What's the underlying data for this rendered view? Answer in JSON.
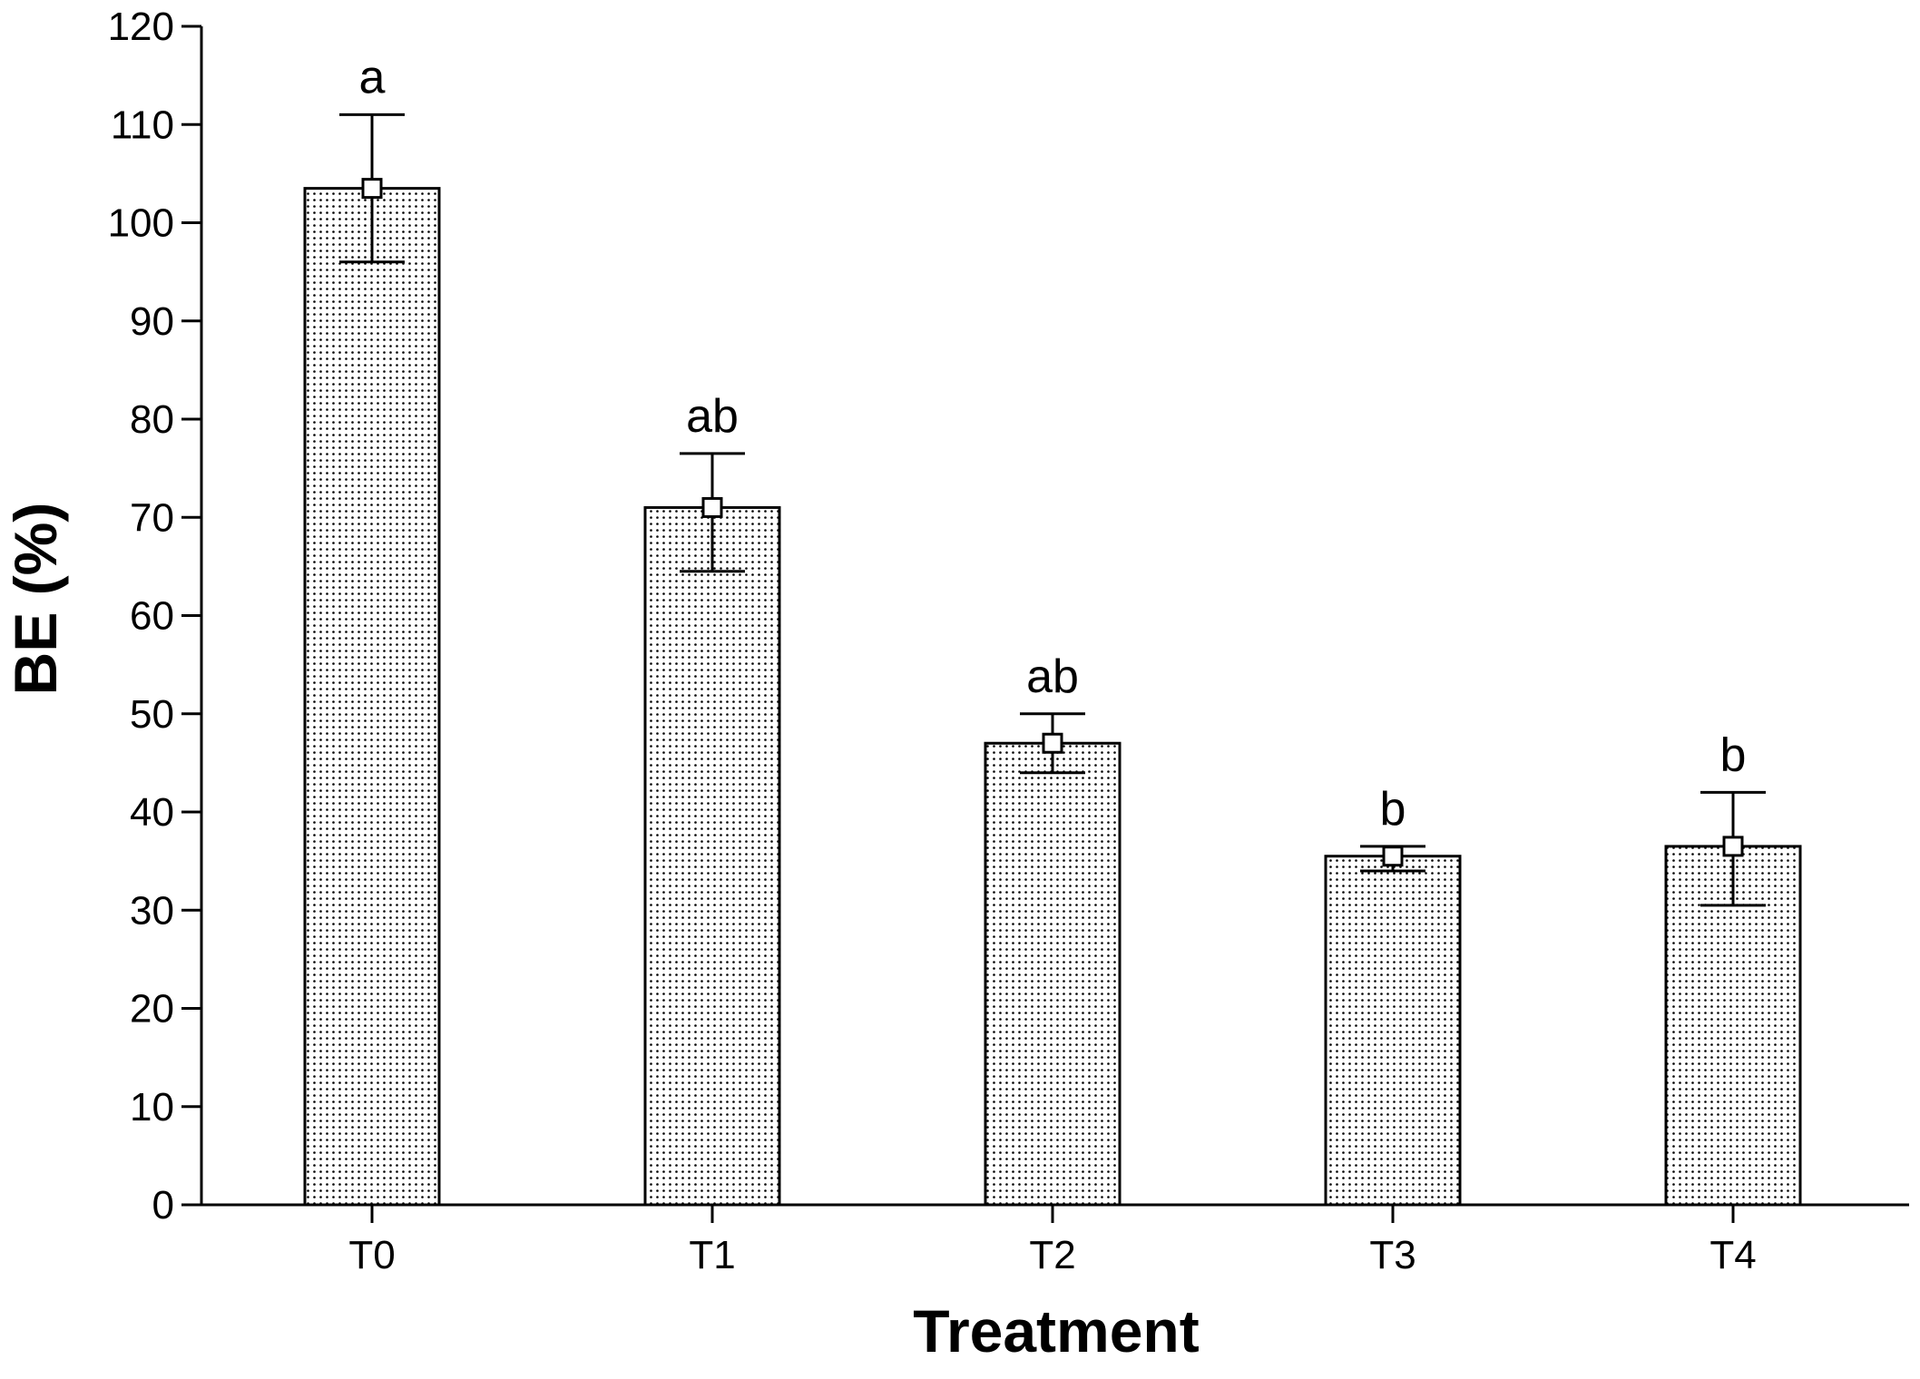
{
  "chart_data": {
    "type": "bar",
    "title": "",
    "xlabel": "Treatment",
    "ylabel": "BE (%)",
    "ylim": [
      0,
      120
    ],
    "yticks": [
      0,
      10,
      20,
      30,
      40,
      50,
      60,
      70,
      80,
      90,
      100,
      110,
      120
    ],
    "categories": [
      "T0",
      "T1",
      "T2",
      "T3",
      "T4"
    ],
    "values": [
      103.5,
      71,
      47,
      35.5,
      36.5
    ],
    "error_low": [
      96,
      64.5,
      44,
      34,
      30.5
    ],
    "error_high": [
      111,
      76.5,
      50,
      36.5,
      42
    ],
    "significance_labels": [
      "a",
      "ab",
      "ab",
      "b",
      "b"
    ],
    "bar_fill": "dotted",
    "grid": false,
    "legend": "none"
  }
}
